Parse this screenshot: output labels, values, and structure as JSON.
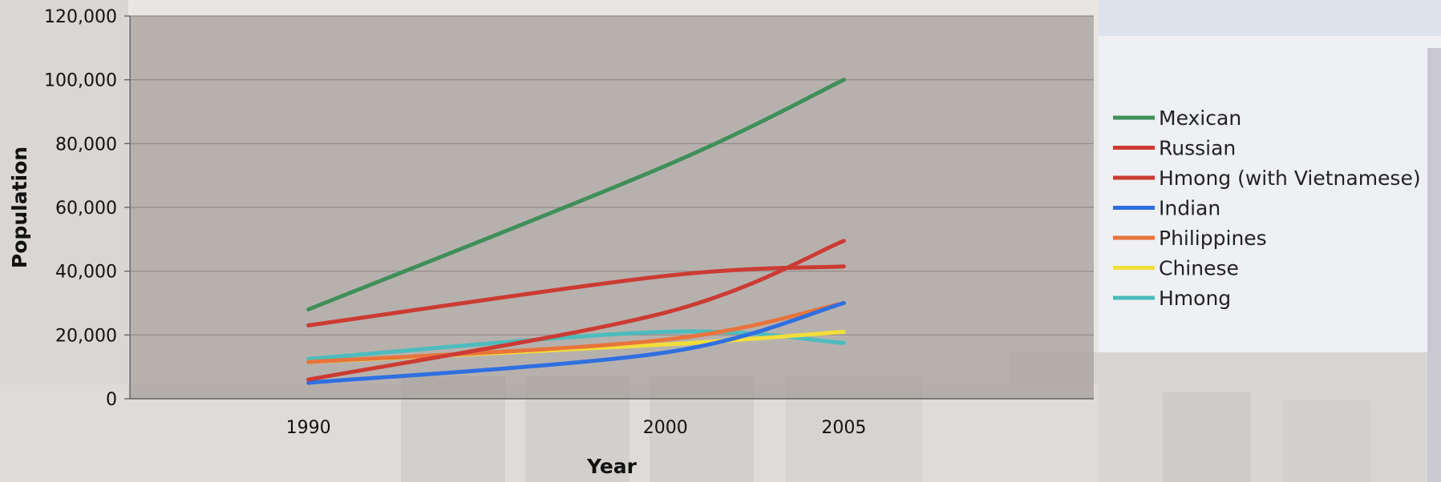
{
  "chart_data": {
    "type": "line",
    "title": "",
    "xlabel": "Year",
    "ylabel": "Population",
    "x": [
      1990,
      2000,
      2005
    ],
    "x_range": [
      1985,
      2012
    ],
    "ylim": [
      0,
      120000
    ],
    "y_ticks": [
      "0",
      "20,000",
      "40,000",
      "60,000",
      "80,000",
      "100,000",
      "120,000"
    ],
    "x_ticks": [
      "1990",
      "2000",
      "2005"
    ],
    "grid": "horizontal",
    "legend_position": "right",
    "series": [
      {
        "name": "Mexican",
        "color": "#3f8f5a",
        "values": [
          28000,
          73000,
          100000
        ]
      },
      {
        "name": "Russian",
        "color": "#cc3b33",
        "values": [
          23000,
          38500,
          41500
        ]
      },
      {
        "name": "Hmong (with Vietnamese)",
        "color": "#cc3b33",
        "values": [
          6000,
          27000,
          49500
        ]
      },
      {
        "name": "Indian",
        "color": "#2f6fe0",
        "values": [
          5000,
          14500,
          30000
        ]
      },
      {
        "name": "Philippines",
        "color": "#e8743b",
        "values": [
          11500,
          18500,
          30000
        ]
      },
      {
        "name": "Chinese",
        "color": "#f1de3b",
        "values": [
          11500,
          17000,
          21000
        ]
      },
      {
        "name": "Hmong",
        "color": "#4cbcbc",
        "values": [
          12500,
          21000,
          17500
        ]
      }
    ]
  }
}
